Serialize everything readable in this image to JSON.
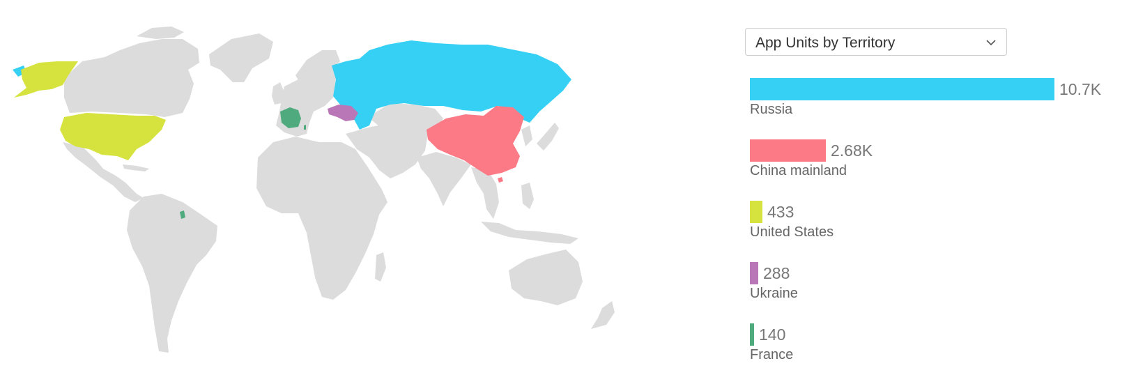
{
  "colors": {
    "land": "#dcdcdc",
    "russia": "#36d0f5",
    "china": "#fb7a86",
    "united_states": "#d6e33e",
    "ukraine": "#b977b7",
    "france": "#4fab7e"
  },
  "selector": {
    "label": "App Units by Territory",
    "icon": "chevron-down-icon"
  },
  "chart_data": {
    "type": "bar",
    "title": "App Units by Territory",
    "orientation": "horizontal",
    "max_value": 10700,
    "categories": [
      "Russia",
      "China mainland",
      "United States",
      "Ukraine",
      "France"
    ],
    "values": [
      10700,
      2680,
      433,
      288,
      140
    ],
    "value_labels": [
      "10.7K",
      "2.68K",
      "433",
      "288",
      "140"
    ],
    "colors": [
      "#36d0f5",
      "#fb7a86",
      "#d6e33e",
      "#b977b7",
      "#4fab7e"
    ]
  }
}
